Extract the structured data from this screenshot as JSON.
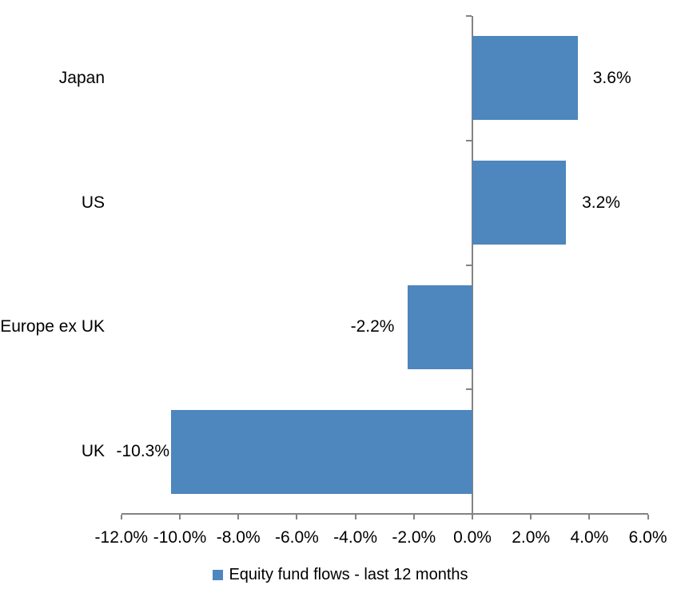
{
  "chart_data": {
    "type": "bar",
    "orientation": "horizontal",
    "title": "",
    "categories": [
      "Japan",
      "US",
      "Europe ex UK",
      "UK"
    ],
    "series": [
      {
        "name": "Equity fund flows - last 12 months",
        "values": [
          3.6,
          3.2,
          -2.2,
          -10.3
        ],
        "data_labels": [
          "3.6%",
          "3.2%",
          "-2.2%",
          "-10.3%"
        ],
        "color": "#4E86BE"
      }
    ],
    "x_axis": {
      "min": -12,
      "max": 6,
      "tick_step": 2,
      "tick_values": [
        -12,
        -10,
        -8,
        -6,
        -4,
        -2,
        0,
        2,
        4,
        6
      ],
      "tick_labels": [
        "-12.0%",
        "-10.0%",
        "-8.0%",
        "-6.0%",
        "-4.0%",
        "-2.0%",
        "0.0%",
        "2.0%",
        "4.0%",
        "6.0%"
      ]
    },
    "grid": false,
    "legend": {
      "position": "bottom",
      "entries": [
        {
          "label": "Equity fund flows - last 12 months",
          "color": "#4E86BE"
        }
      ]
    },
    "colors": {
      "bar": "#4E86BE",
      "axis_line": "#838383",
      "text": "#000000",
      "background": "#FFFFFF"
    }
  }
}
